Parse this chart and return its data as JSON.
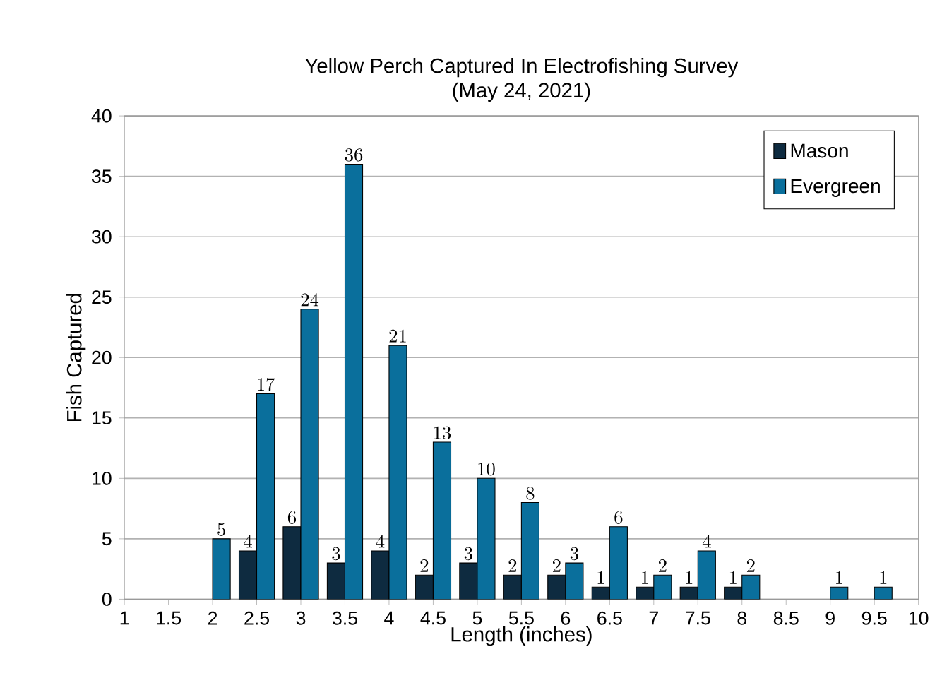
{
  "chart_data": {
    "type": "bar",
    "title": "Yellow Perch Captured In Electrofishing Survey",
    "subtitle": "(May 24, 2021)",
    "xlabel": "Length (inches)",
    "ylabel": "Fish Captured",
    "categories": [
      "1",
      "1.5",
      "2",
      "2.5",
      "3",
      "3.5",
      "4",
      "4.5",
      "5",
      "5.5",
      "6",
      "6.5",
      "7",
      "7.5",
      "8",
      "8.5",
      "9",
      "9.5",
      "10"
    ],
    "series": [
      {
        "name": "Mason",
        "color": "#0e2b40",
        "values": [
          null,
          null,
          null,
          4,
          6,
          3,
          4,
          2,
          3,
          2,
          2,
          1,
          1,
          1,
          1,
          null,
          null,
          null,
          null
        ]
      },
      {
        "name": "Evergreen",
        "color": "#0a6f9c",
        "values": [
          null,
          null,
          5,
          17,
          24,
          36,
          21,
          13,
          10,
          8,
          3,
          6,
          2,
          4,
          2,
          null,
          1,
          1,
          null
        ]
      }
    ],
    "ylim": [
      0,
      40
    ],
    "yticks": [
      0,
      5,
      10,
      15,
      20,
      25,
      30,
      35,
      40
    ],
    "grid": "y",
    "legend": "top right",
    "data_labels": true
  }
}
